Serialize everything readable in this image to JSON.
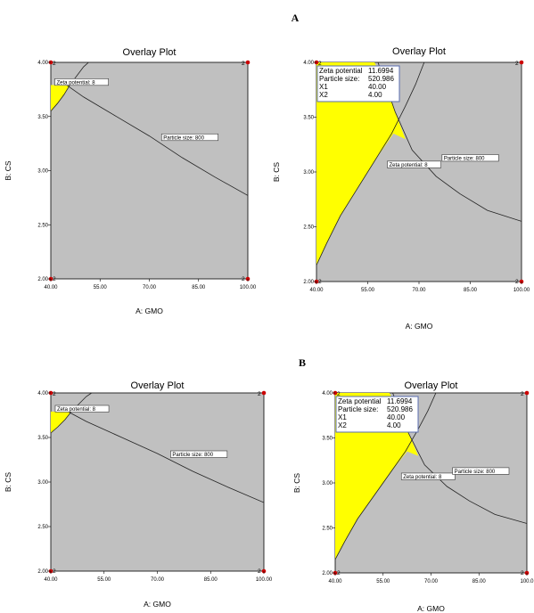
{
  "sections": {
    "a": "A",
    "b": "B"
  },
  "chart_data": [
    {
      "id": "A-left",
      "type": "contour",
      "title": "Overlay Plot",
      "xlabel": "A: GMO",
      "ylabel": "B: CS",
      "xlim": [
        40,
        100
      ],
      "ylim": [
        2,
        4
      ],
      "xticks": [
        "40.00",
        "55.00",
        "70.00",
        "85.00",
        "100.00"
      ],
      "yticks": [
        "2.00",
        "2.50",
        "3.00",
        "3.50",
        "4.00"
      ],
      "corner_label": "2",
      "contours": [
        {
          "name": "Zeta potential",
          "value": "8",
          "label": "Zeta potential: 8",
          "points": [
            [
              40,
              3.55
            ],
            [
              42,
              3.62
            ],
            [
              44,
              3.7
            ],
            [
              46,
              3.8
            ],
            [
              48,
              3.88
            ],
            [
              50,
              3.96
            ],
            [
              51.5,
              4.0
            ]
          ],
          "label_at": [
            41.5,
            3.8
          ]
        },
        {
          "name": "Particle size",
          "value": "800",
          "label": "Particle size: 800",
          "points": [
            [
              42,
              3.85
            ],
            [
              50,
              3.68
            ],
            [
              60,
              3.5
            ],
            [
              70,
              3.32
            ],
            [
              80,
              3.12
            ],
            [
              90,
              2.94
            ],
            [
              100,
              2.77
            ]
          ],
          "label_at": [
            74,
            3.29
          ]
        }
      ],
      "feasible_region": [
        [
          40,
          3.55
        ],
        [
          42,
          3.62
        ],
        [
          44,
          3.7
        ],
        [
          45.7,
          3.79
        ],
        [
          40,
          3.79
        ]
      ],
      "colors": {
        "background": "#c0c0c0",
        "feasible": "#ffff00",
        "point": "#cc0000"
      }
    },
    {
      "id": "A-right",
      "type": "contour",
      "title": "Overlay Plot",
      "xlabel": "A: GMO",
      "ylabel": "B: CS",
      "xlim": [
        40,
        100
      ],
      "ylim": [
        2,
        4
      ],
      "xticks": [
        "40.00",
        "55.00",
        "70.00",
        "85.00",
        "100.00"
      ],
      "yticks": [
        "2.00",
        "2.50",
        "3.00",
        "3.50",
        "4.00"
      ],
      "corner_label": "2",
      "contours": [
        {
          "name": "Zeta potential",
          "value": "8",
          "label": "Zeta potential: 8",
          "points": [
            [
              40,
              2.15
            ],
            [
              43,
              2.35
            ],
            [
              47,
              2.6
            ],
            [
              52,
              2.85
            ],
            [
              57,
              3.1
            ],
            [
              62,
              3.35
            ],
            [
              66,
              3.6
            ],
            [
              69,
              3.8
            ],
            [
              71.5,
              4.0
            ]
          ],
          "label_at": [
            61,
            3.05
          ]
        },
        {
          "name": "Particle size",
          "value": "800",
          "label": "Particle size: 800",
          "points": [
            [
              58,
              4.0
            ],
            [
              63,
              3.55
            ],
            [
              68,
              3.2
            ],
            [
              75,
              2.96
            ],
            [
              82,
              2.8
            ],
            [
              90,
              2.65
            ],
            [
              100,
              2.55
            ]
          ],
          "label_at": [
            77,
            3.11
          ]
        }
      ],
      "feasible_region": [
        [
          40,
          4.0
        ],
        [
          57,
          4.0
        ],
        [
          60,
          3.8
        ],
        [
          63,
          3.55
        ],
        [
          66,
          3.3
        ],
        [
          62.5,
          3.35
        ],
        [
          57,
          3.1
        ],
        [
          52,
          2.85
        ],
        [
          47,
          2.6
        ],
        [
          43,
          2.35
        ],
        [
          40,
          2.15
        ]
      ],
      "flag": [
        {
          "label": "Zeta potential",
          "value": "11.6994"
        },
        {
          "label": "Particle size:",
          "value": "520.986"
        },
        {
          "label": "X1",
          "value": "40.00"
        },
        {
          "label": "X2",
          "value": "4.00"
        }
      ],
      "colors": {
        "background": "#c0c0c0",
        "feasible": "#ffff00",
        "point": "#cc0000"
      }
    },
    {
      "id": "B-left",
      "type": "contour",
      "title": "Overlay Plot",
      "xlabel": "A: GMO",
      "ylabel": "B: CS",
      "xlim": [
        40,
        100
      ],
      "ylim": [
        2,
        4
      ],
      "xticks": [
        "40.00",
        "55.00",
        "70.00",
        "85.00",
        "100.00"
      ],
      "yticks": [
        "2.00",
        "2.50",
        "3.00",
        "3.50",
        "4.00"
      ],
      "corner_label": "2",
      "contours": [
        {
          "name": "Zeta potential",
          "value": "8",
          "label": "Zeta potential: 8",
          "points": [
            [
              40,
              3.55
            ],
            [
              42,
              3.62
            ],
            [
              44,
              3.7
            ],
            [
              46,
              3.8
            ],
            [
              48,
              3.88
            ],
            [
              50,
              3.96
            ],
            [
              51.5,
              4.0
            ]
          ],
          "label_at": [
            41.5,
            3.8
          ]
        },
        {
          "name": "Particle size",
          "value": "800",
          "label": "Particle size: 800",
          "points": [
            [
              42,
              3.85
            ],
            [
              50,
              3.68
            ],
            [
              60,
              3.5
            ],
            [
              70,
              3.32
            ],
            [
              80,
              3.12
            ],
            [
              90,
              2.94
            ],
            [
              100,
              2.77
            ]
          ],
          "label_at": [
            74,
            3.29
          ]
        }
      ],
      "feasible_region": [
        [
          40,
          3.55
        ],
        [
          42,
          3.62
        ],
        [
          44,
          3.7
        ],
        [
          45.7,
          3.79
        ],
        [
          40,
          3.79
        ]
      ],
      "colors": {
        "background": "#c0c0c0",
        "feasible": "#ffff00",
        "point": "#cc0000"
      }
    },
    {
      "id": "B-right",
      "type": "contour",
      "title": "Overlay Plot",
      "xlabel": "A: GMO",
      "ylabel": "B: CS",
      "xlim": [
        40,
        100
      ],
      "ylim": [
        2,
        4
      ],
      "xticks": [
        "40.00",
        "55.00",
        "70.00",
        "85.00",
        "100.0"
      ],
      "yticks": [
        "2.00",
        "2.50",
        "3.00",
        "3.50",
        "4.00"
      ],
      "corner_label": "2",
      "contours": [
        {
          "name": "Zeta potential",
          "value": "8",
          "label": "Zeta potential: 8",
          "points": [
            [
              40,
              2.15
            ],
            [
              43,
              2.35
            ],
            [
              47,
              2.6
            ],
            [
              52,
              2.85
            ],
            [
              57,
              3.1
            ],
            [
              62,
              3.35
            ],
            [
              66,
              3.6
            ],
            [
              69,
              3.8
            ],
            [
              71.5,
              4.0
            ]
          ],
          "label_at": [
            61,
            3.05
          ]
        },
        {
          "name": "Particle size",
          "value": "800",
          "label": "Particle size: 800",
          "points": [
            [
              58,
              4.0
            ],
            [
              63,
              3.55
            ],
            [
              68,
              3.2
            ],
            [
              75,
              2.96
            ],
            [
              82,
              2.8
            ],
            [
              90,
              2.65
            ],
            [
              100,
              2.55
            ]
          ],
          "label_at": [
            77,
            3.11
          ]
        }
      ],
      "feasible_region": [
        [
          40,
          4.0
        ],
        [
          57,
          4.0
        ],
        [
          60,
          3.8
        ],
        [
          63,
          3.55
        ],
        [
          66,
          3.3
        ],
        [
          62.5,
          3.35
        ],
        [
          57,
          3.1
        ],
        [
          52,
          2.85
        ],
        [
          47,
          2.6
        ],
        [
          43,
          2.35
        ],
        [
          40,
          2.15
        ]
      ],
      "flag": [
        {
          "label": "Zeta potential",
          "value": "11.6994"
        },
        {
          "label": "Particle size:",
          "value": "520.986"
        },
        {
          "label": "X1",
          "value": "40.00"
        },
        {
          "label": "X2",
          "value": "4.00"
        }
      ],
      "colors": {
        "background": "#c0c0c0",
        "feasible": "#ffff00",
        "point": "#cc0000"
      }
    }
  ]
}
